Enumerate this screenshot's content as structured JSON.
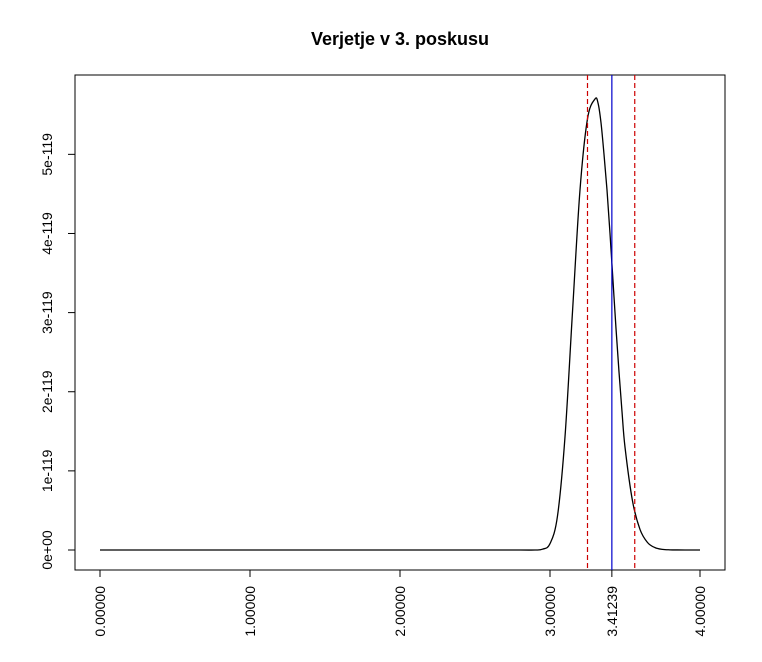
{
  "chart_data": {
    "type": "line",
    "title": "Verjetje v 3. poskusu",
    "xlabel": "",
    "ylabel": "",
    "xlim": [
      0.0,
      4.0
    ],
    "ylim": [
      0.0,
      5.75e-119
    ],
    "x_ticks": [
      {
        "value": 0.0,
        "label": "0.00000"
      },
      {
        "value": 1.0,
        "label": "1.00000"
      },
      {
        "value": 2.0,
        "label": "2.00000"
      },
      {
        "value": 3.0,
        "label": "3.00000"
      },
      {
        "value": 3.41239,
        "label": "3.41239"
      },
      {
        "value": 4.0,
        "label": "4.00000"
      }
    ],
    "y_ticks": [
      {
        "value": 0.0,
        "label": "0e+00"
      },
      {
        "value": 1e-119,
        "label": "1e-119"
      },
      {
        "value": 2e-119,
        "label": "2e-119"
      },
      {
        "value": 3e-119,
        "label": "3e-119"
      },
      {
        "value": 4e-119,
        "label": "4e-119"
      },
      {
        "value": 5e-119,
        "label": "5e-119"
      }
    ],
    "grid": false,
    "legend": "none",
    "series": [
      {
        "x": [
          0.0,
          0.5,
          1.0,
          1.5,
          2.0,
          2.5,
          2.8,
          2.9,
          2.95,
          3.0,
          3.05,
          3.1,
          3.15,
          3.2,
          3.25,
          3.3,
          3.32,
          3.34,
          3.36,
          3.38,
          3.4,
          3.42,
          3.44,
          3.46,
          3.48,
          3.5,
          3.55,
          3.6,
          3.65,
          3.7,
          3.75,
          3.8,
          3.85,
          3.9,
          3.95,
          4.0
        ],
        "y": [
          0.0,
          0.0,
          0.0,
          0.0,
          0.0,
          0.0,
          0.0,
          0.0,
          1e-121,
          8e-121,
          4.3e-120,
          1.43e-119,
          3.01e-119,
          4.55e-119,
          5.45e-119,
          5.7e-119,
          5.65e-119,
          5.4e-119,
          5e-119,
          4.55e-119,
          4e-119,
          3.4e-119,
          2.8e-119,
          2.25e-119,
          1.75e-119,
          1.3e-119,
          6.2e-120,
          2.6e-120,
          9.5e-121,
          3e-121,
          8e-122,
          2e-122,
          5e-123,
          1e-123,
          0.0,
          0.0
        ],
        "color": "#000000"
      }
    ],
    "vlines": [
      {
        "x": 3.41239,
        "color": "#0000cc",
        "style": "solid"
      },
      {
        "x": 3.25,
        "color": "#cc0000",
        "style": "dashed"
      },
      {
        "x": 3.565,
        "color": "#cc0000",
        "style": "dashed"
      }
    ]
  }
}
